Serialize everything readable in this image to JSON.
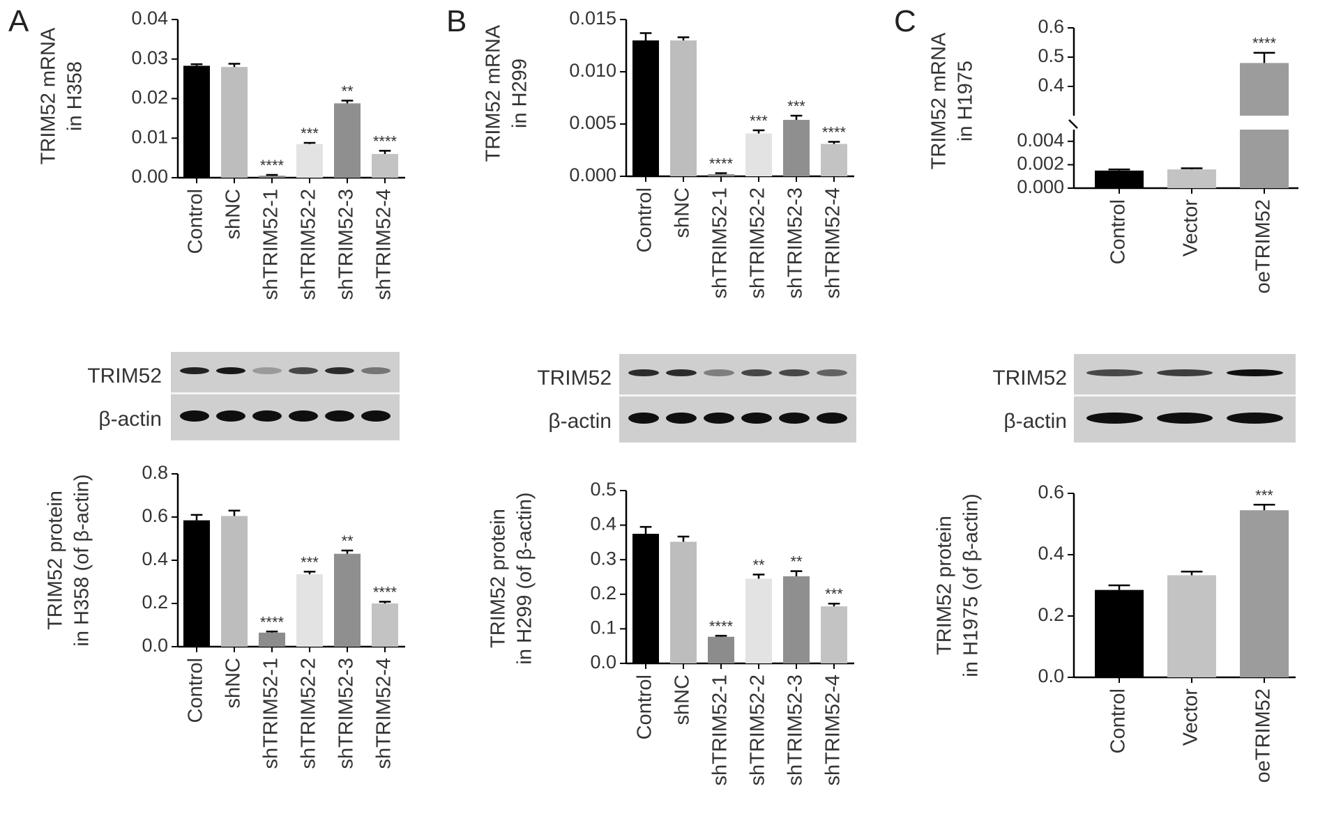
{
  "panels": [
    {
      "id": "A",
      "label": "A"
    },
    {
      "id": "B",
      "label": "B"
    },
    {
      "id": "C",
      "label": "C"
    }
  ],
  "blots": {
    "A": {
      "rows": [
        "TRIM52",
        "β-actin"
      ],
      "band_intensity": [
        [
          0.9,
          0.95,
          0.25,
          0.7,
          0.85,
          0.45
        ],
        [
          1,
          1,
          1,
          1,
          1,
          1
        ]
      ]
    },
    "B": {
      "rows": [
        "TRIM52",
        "β-actin"
      ],
      "band_intensity": [
        [
          0.85,
          0.85,
          0.4,
          0.7,
          0.7,
          0.55
        ],
        [
          1,
          1,
          1,
          1,
          1,
          1
        ]
      ]
    },
    "C": {
      "rows": [
        "TRIM52",
        "β-actin"
      ],
      "band_intensity": [
        [
          0.7,
          0.75,
          1.0
        ],
        [
          1,
          1,
          1
        ]
      ]
    }
  },
  "colors": {
    "Control": "#000000",
    "shNC": "#bdbdbd",
    "shTRIM52-1": "#8c8c8c",
    "shTRIM52-2": "#e3e3e3",
    "shTRIM52-3": "#8f8f8f",
    "shTRIM52-4": "#c3c3c3",
    "Vector": "#c3c3c3",
    "oeTRIM52": "#9c9c9c"
  },
  "chart_data": [
    {
      "id": "A-mrna",
      "type": "bar",
      "ylabel": [
        "TRIM52 mRNA",
        "in H358"
      ],
      "categories": [
        "Control",
        "shNC",
        "shTRIM52-1",
        "shTRIM52-2",
        "shTRIM52-3",
        "shTRIM52-4"
      ],
      "values": [
        0.0283,
        0.028,
        0.0005,
        0.0085,
        0.0188,
        0.006
      ],
      "errors": [
        0.0004,
        0.0008,
        0.0002,
        0.0003,
        0.0007,
        0.0008
      ],
      "annotations": [
        "",
        "",
        "****",
        "***",
        "**",
        "****"
      ],
      "ylim": [
        0,
        0.04
      ],
      "yticks": [
        0.0,
        0.01,
        0.02,
        0.03,
        0.04
      ],
      "yticklabels": [
        "0.00",
        "0.01",
        "0.02",
        "0.03",
        "0.04"
      ]
    },
    {
      "id": "A-protein",
      "type": "bar",
      "ylabel": [
        "TRIM52 protein",
        "in H358 (of β-actin)"
      ],
      "categories": [
        "Control",
        "shNC",
        "shTRIM52-1",
        "shTRIM52-2",
        "shTRIM52-3",
        "shTRIM52-4"
      ],
      "values": [
        0.585,
        0.605,
        0.065,
        0.335,
        0.43,
        0.2
      ],
      "errors": [
        0.025,
        0.025,
        0.005,
        0.012,
        0.015,
        0.008
      ],
      "annotations": [
        "",
        "",
        "****",
        "***",
        "**",
        "****"
      ],
      "ylim": [
        0,
        0.8
      ],
      "yticks": [
        0.0,
        0.2,
        0.4,
        0.6,
        0.8
      ],
      "yticklabels": [
        "0.0",
        "0.2",
        "0.4",
        "0.6",
        "0.8"
      ]
    },
    {
      "id": "B-mrna",
      "type": "bar",
      "ylabel": [
        "TRIM52 mRNA",
        "in H299"
      ],
      "categories": [
        "Control",
        "shNC",
        "shTRIM52-1",
        "shTRIM52-2",
        "shTRIM52-3",
        "shTRIM52-4"
      ],
      "values": [
        0.013,
        0.013,
        0.0002,
        0.0041,
        0.0054,
        0.0031
      ],
      "errors": [
        0.0007,
        0.0003,
        0.0001,
        0.0003,
        0.0004,
        0.0002
      ],
      "annotations": [
        "",
        "",
        "****",
        "***",
        "***",
        "****"
      ],
      "ylim": [
        0,
        0.015
      ],
      "yticks": [
        0.0,
        0.005,
        0.01,
        0.015
      ],
      "yticklabels": [
        "0.000",
        "0.005",
        "0.010",
        "0.015"
      ]
    },
    {
      "id": "B-protein",
      "type": "bar",
      "ylabel": [
        "TRIM52 protein",
        "in H299 (of β-actin)"
      ],
      "categories": [
        "Control",
        "shNC",
        "shTRIM52-1",
        "shTRIM52-2",
        "shTRIM52-3",
        "shTRIM52-4"
      ],
      "values": [
        0.375,
        0.352,
        0.077,
        0.245,
        0.252,
        0.165
      ],
      "errors": [
        0.02,
        0.015,
        0.003,
        0.012,
        0.015,
        0.008
      ],
      "annotations": [
        "",
        "",
        "****",
        "**",
        "**",
        "***"
      ],
      "ylim": [
        0,
        0.5
      ],
      "yticks": [
        0.0,
        0.1,
        0.2,
        0.3,
        0.4,
        0.5
      ],
      "yticklabels": [
        "0.0",
        "0.1",
        "0.2",
        "0.3",
        "0.4",
        "0.5"
      ]
    },
    {
      "id": "C-mrna",
      "type": "bar",
      "broken_axis": true,
      "ylabel": [
        "TRIM52 mRNA",
        "in H1975"
      ],
      "categories": [
        "Control",
        "Vector",
        "oeTRIM52"
      ],
      "values": [
        0.0015,
        0.0016,
        0.48
      ],
      "errors": [
        0.0001,
        0.0001,
        0.035
      ],
      "annotations": [
        "",
        "",
        "****"
      ],
      "segments": [
        {
          "ylim": [
            0,
            0.005
          ],
          "yticks": [
            0.0,
            0.002,
            0.004
          ],
          "yticklabels": [
            "0.000",
            "0.002",
            "0.004"
          ]
        },
        {
          "ylim": [
            0.3,
            0.6
          ],
          "yticks": [
            0.4,
            0.5,
            0.6
          ],
          "yticklabels": [
            "0.4",
            "0.5",
            "0.6"
          ]
        }
      ]
    },
    {
      "id": "C-protein",
      "type": "bar",
      "ylabel": [
        "TRIM52 protein",
        "in H1975 (of β-actin)"
      ],
      "categories": [
        "Control",
        "Vector",
        "oeTRIM52"
      ],
      "values": [
        0.285,
        0.333,
        0.545
      ],
      "errors": [
        0.015,
        0.012,
        0.018
      ],
      "annotations": [
        "",
        "",
        "***"
      ],
      "ylim": [
        0,
        0.6
      ],
      "yticks": [
        0.0,
        0.2,
        0.4,
        0.6
      ],
      "yticklabels": [
        "0.0",
        "0.2",
        "0.4",
        "0.6"
      ]
    }
  ]
}
